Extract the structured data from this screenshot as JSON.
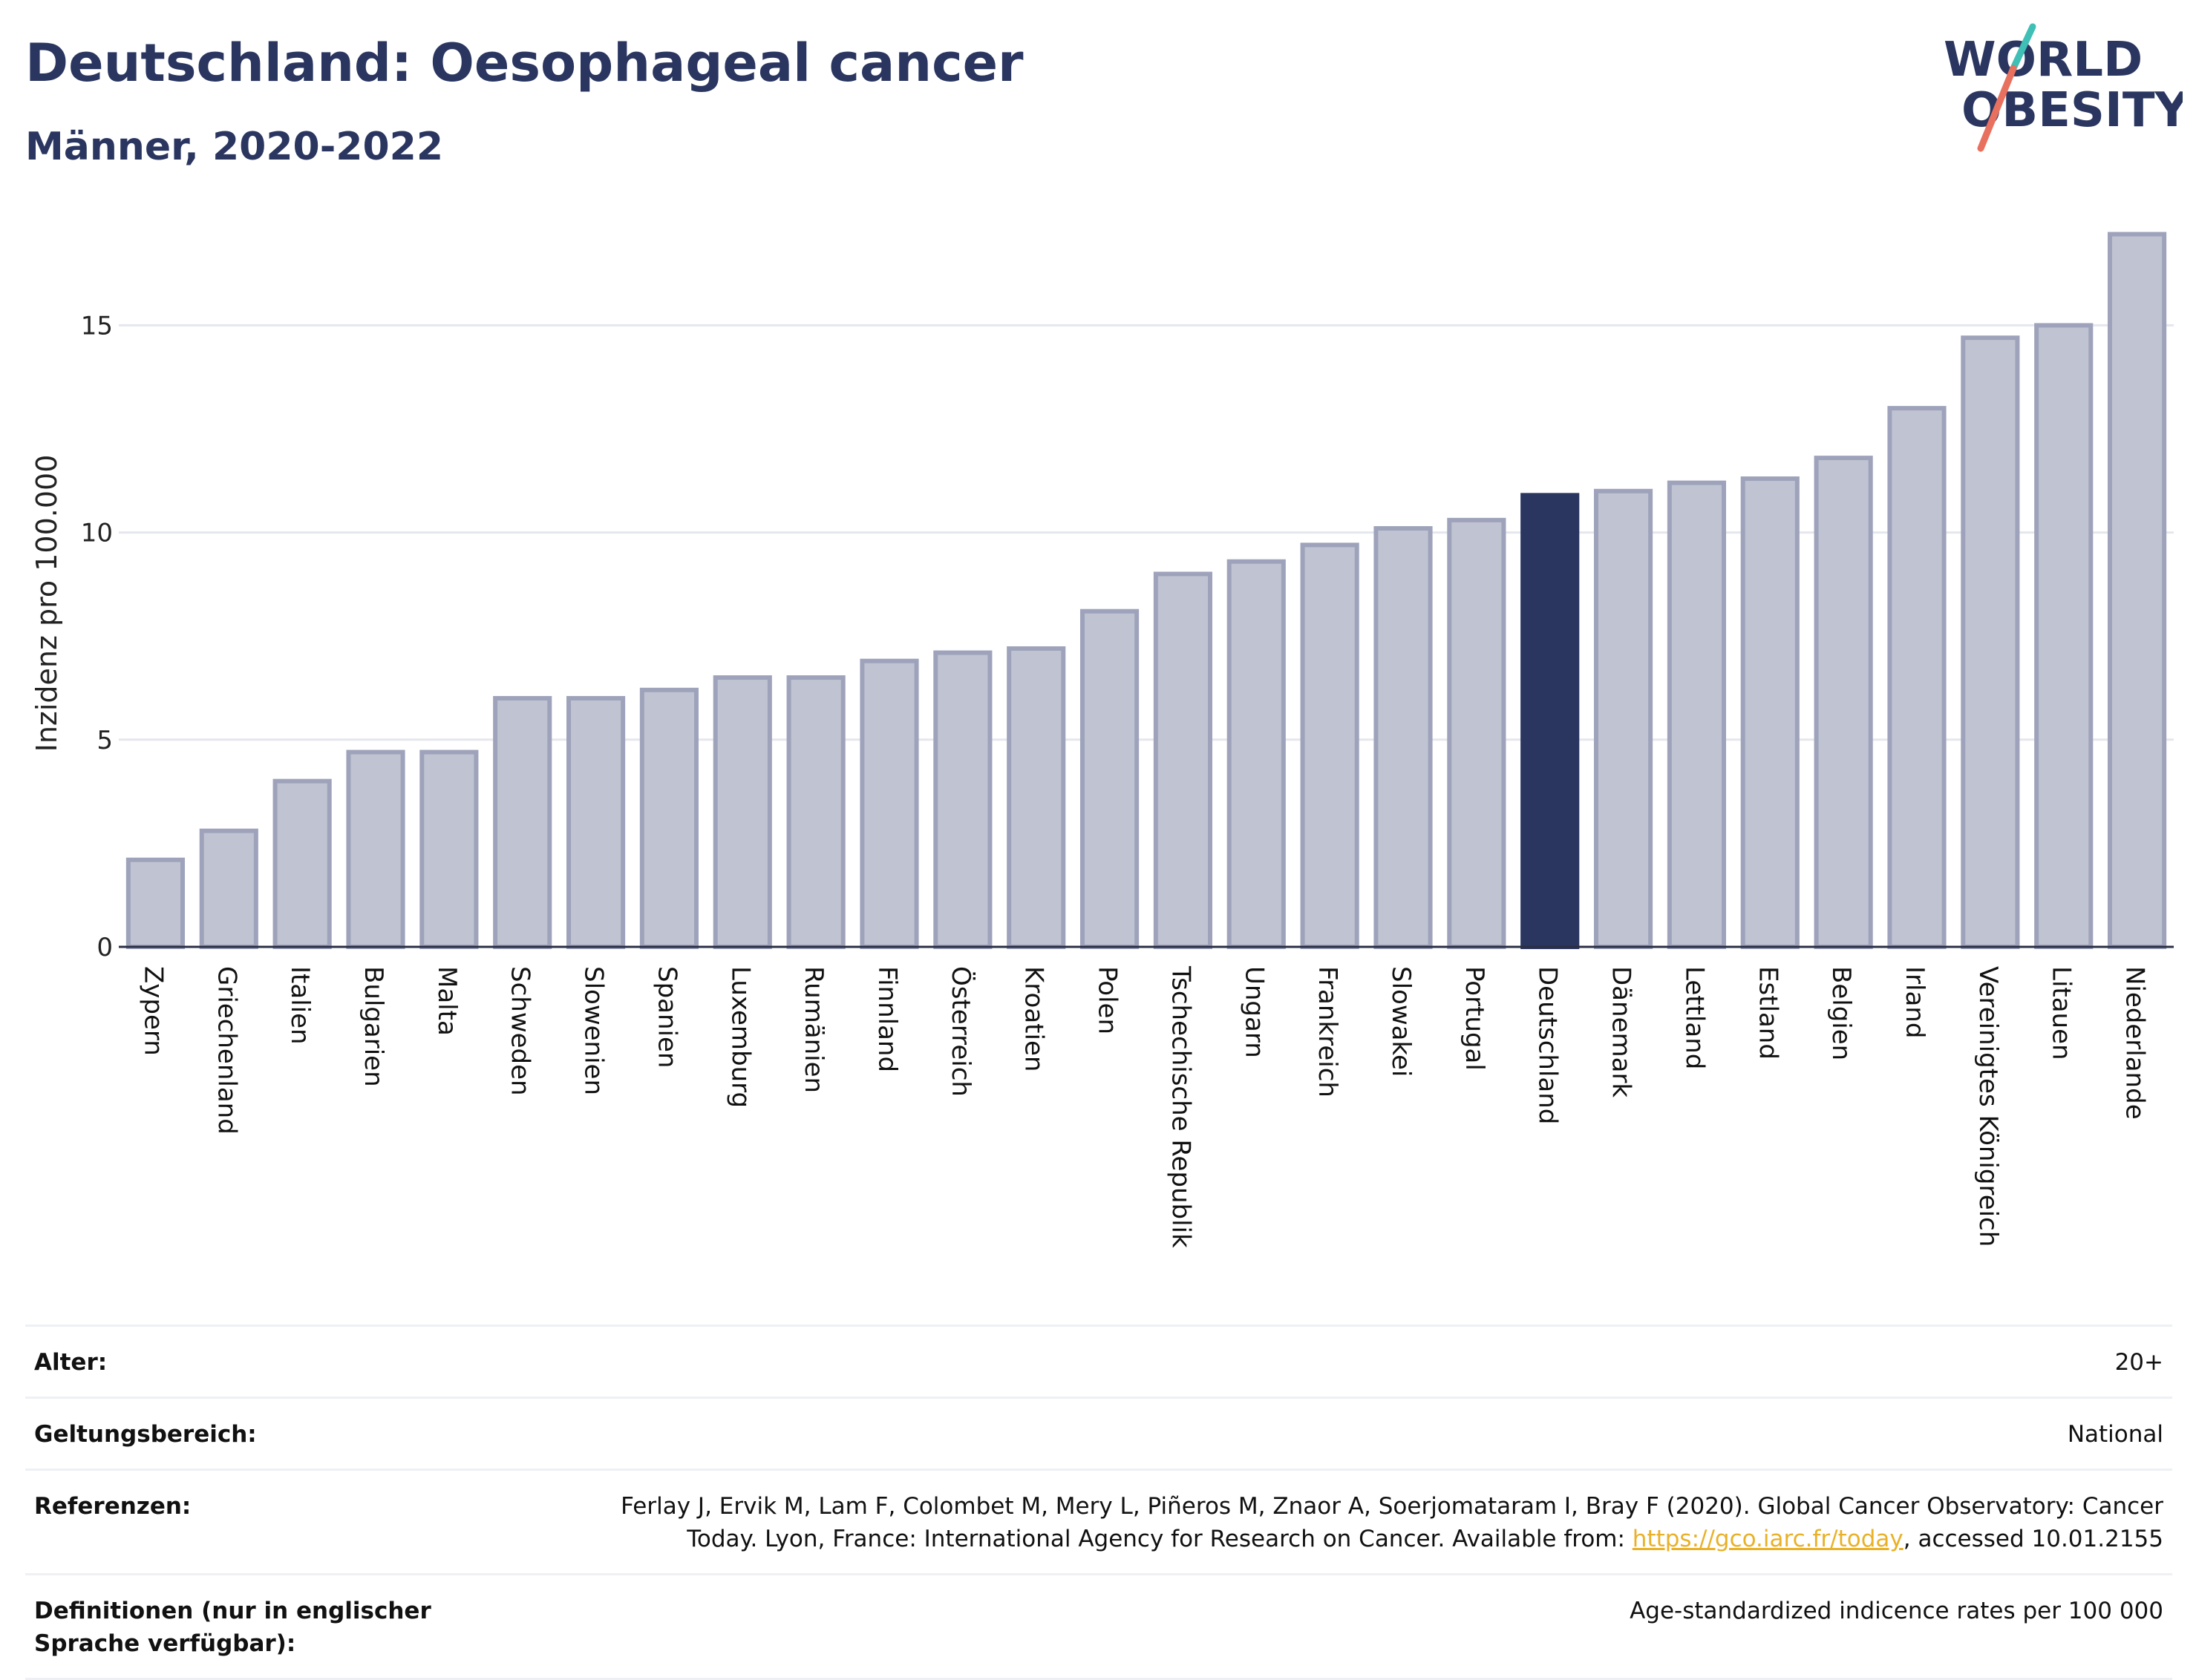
{
  "header": {
    "title": "Deutschland: Oesophageal cancer",
    "subtitle": "Männer, 2020-2022"
  },
  "logo": {
    "line1": "WORLD",
    "line2": "OBESITY",
    "accent_teal": "#3fbfb5",
    "accent_coral": "#e8705f"
  },
  "colors": {
    "bar": "#c0c3d1",
    "bar_border": "#9ea3bb",
    "highlight": "#2a3660",
    "grid": "#e5e7ee",
    "axis": "#2a2f45"
  },
  "chart_data": {
    "type": "bar",
    "title": "Deutschland: Oesophageal cancer",
    "subtitle": "Männer, 2020-2022",
    "xlabel": "",
    "ylabel": "Inzidenz pro 100.000",
    "ylim": [
      0,
      17.3
    ],
    "yticks": [
      0,
      5,
      10,
      15
    ],
    "grid": true,
    "highlight": "Deutschland",
    "categories": [
      "Zypern",
      "Griechenland",
      "Italien",
      "Bulgarien",
      "Malta",
      "Schweden",
      "Slowenien",
      "Spanien",
      "Luxemburg",
      "Rumänien",
      "Finnland",
      "Österreich",
      "Kroatien",
      "Polen",
      "Tschechische Republik",
      "Ungarn",
      "Frankreich",
      "Slowakei",
      "Portugal",
      "Deutschland",
      "Dänemark",
      "Lettland",
      "Estland",
      "Belgien",
      "Irland",
      "Vereinigtes Königreich",
      "Litauen",
      "Niederlande"
    ],
    "values": [
      2.1,
      2.8,
      4.0,
      4.7,
      4.7,
      6.0,
      6.0,
      6.2,
      6.5,
      6.5,
      6.9,
      7.1,
      7.2,
      8.1,
      9.0,
      9.3,
      9.7,
      10.1,
      10.3,
      10.9,
      11.0,
      11.2,
      11.3,
      11.8,
      13.0,
      14.7,
      15.0,
      17.2
    ]
  },
  "meta": {
    "age_label": "Alter:",
    "age_value": "20+",
    "scope_label": "Geltungsbereich:",
    "scope_value": "National",
    "refs_label": "Referenzen:",
    "refs_line1": "Ferlay J, Ervik M, Lam F, Colombet M, Mery L, Piñeros M, Znaor A, Soerjomataram I, Bray F (2020). Global Cancer Observatory: Cancer",
    "refs_line2_pre": "Today. Lyon, France: International Agency for Research on Cancer. Available from: ",
    "refs_link": "https://gco.iarc.fr/today",
    "refs_line2_post": ", accessed 10.01.2155",
    "defs_label": "Definitionen (nur in englischer Sprache verfügbar):",
    "defs_value": "Age-standardized indicence rates per 100 000"
  }
}
